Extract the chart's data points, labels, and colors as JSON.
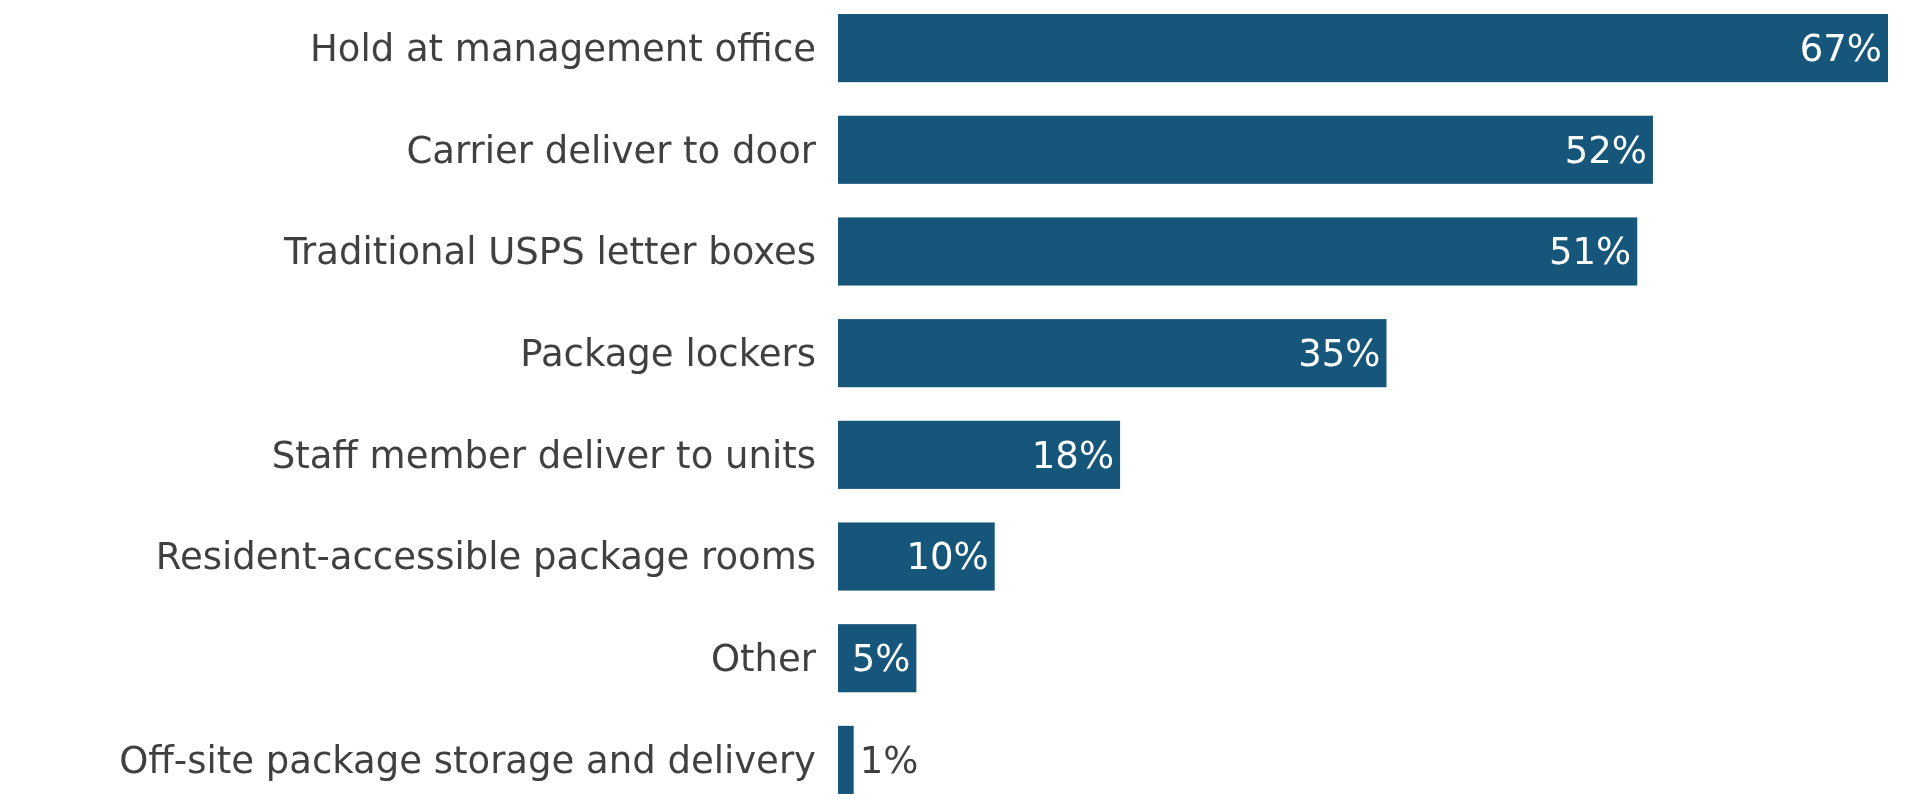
{
  "chart_data": {
    "type": "bar",
    "orientation": "horizontal",
    "categories": [
      "Hold at management office",
      "Carrier deliver to door",
      "Traditional USPS letter boxes",
      "Package lockers",
      "Staff member deliver to units",
      "Resident-accessible package rooms",
      "Other",
      "Off-site package storage and delivery"
    ],
    "values": [
      67,
      52,
      51,
      35,
      18,
      10,
      5,
      1
    ],
    "value_labels": [
      "67%",
      "52%",
      "51%",
      "35%",
      "18%",
      "10%",
      "5%",
      "1%"
    ],
    "color": "#15567a"
  }
}
